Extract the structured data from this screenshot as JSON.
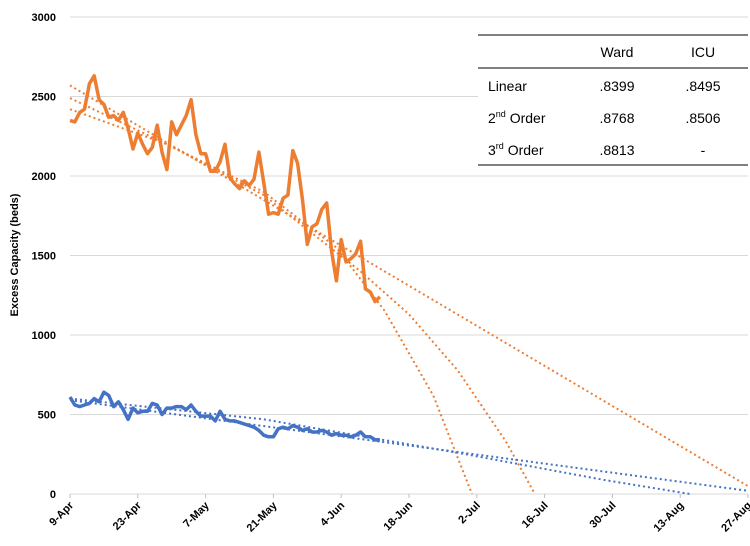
{
  "chart_data": {
    "type": "line",
    "ylabel": "Excess Capacity (beds)",
    "x": [
      0,
      1,
      2,
      3,
      4,
      5,
      6,
      7,
      8,
      9,
      10,
      11,
      12,
      13,
      14,
      15,
      16,
      17,
      18,
      19,
      20,
      21,
      22,
      23,
      24,
      25,
      26,
      27,
      28,
      29,
      30,
      31,
      32,
      33,
      34,
      35,
      36,
      37,
      38,
      39,
      40,
      41,
      42,
      43,
      44,
      45,
      46,
      47,
      48,
      49,
      50,
      51,
      52,
      53,
      54,
      55,
      56,
      57,
      58,
      59,
      60,
      61,
      62,
      63,
      64
    ],
    "series": [
      {
        "name": "Ward",
        "color": "#ed7d31",
        "values": [
          2350,
          2340,
          2400,
          2420,
          2580,
          2630,
          2480,
          2450,
          2370,
          2380,
          2350,
          2400,
          2300,
          2170,
          2270,
          2200,
          2140,
          2180,
          2320,
          2150,
          2040,
          2340,
          2260,
          2320,
          2380,
          2480,
          2260,
          2140,
          2140,
          2030,
          2030,
          2090,
          2200,
          1990,
          1950,
          1920,
          1970,
          1940,
          1980,
          2150,
          1960,
          1760,
          1770,
          1760,
          1860,
          1880,
          2160,
          2080,
          1850,
          1570,
          1680,
          1700,
          1790,
          1830,
          1530,
          1340,
          1600,
          1460,
          1480,
          1510,
          1590,
          1290,
          1270,
          1210,
          1240
        ]
      },
      {
        "name": "ICU",
        "color": "#4472c4",
        "values": [
          610,
          560,
          550,
          560,
          570,
          600,
          580,
          640,
          620,
          550,
          580,
          530,
          470,
          540,
          510,
          520,
          520,
          570,
          560,
          500,
          540,
          540,
          550,
          550,
          530,
          560,
          520,
          490,
          490,
          490,
          460,
          520,
          470,
          460,
          460,
          450,
          440,
          430,
          420,
          400,
          370,
          360,
          360,
          410,
          420,
          410,
          430,
          420,
          400,
          410,
          390,
          390,
          400,
          390,
          370,
          380,
          370,
          370,
          360,
          370,
          390,
          360,
          360,
          340,
          340
        ]
      }
    ],
    "trendlines": [
      {
        "color": "#ed7d31",
        "x": [
          0,
          140
        ],
        "values": [
          2570,
          50
        ]
      },
      {
        "color": "#ed7d31",
        "x": [
          0,
          20,
          40,
          60,
          70,
          80,
          90,
          96
        ],
        "values": [
          2490,
          2200,
          1880,
          1400,
          1130,
          780,
          330,
          0
        ]
      },
      {
        "color": "#ed7d31",
        "x": [
          0,
          20,
          40,
          55,
          65,
          75,
          83
        ],
        "values": [
          2420,
          2200,
          1900,
          1550,
          1150,
          620,
          0
        ]
      },
      {
        "color": "#4472c4",
        "x": [
          0,
          140
        ],
        "values": [
          590,
          20
        ]
      },
      {
        "color": "#4472c4",
        "x": [
          0,
          40,
          80,
          110,
          128
        ],
        "values": [
          600,
          470,
          260,
          90,
          0
        ]
      }
    ],
    "xlim": [
      0,
      140
    ],
    "xticks": [
      {
        "value": 0,
        "label": "9-Apr"
      },
      {
        "value": 14,
        "label": "23-Apr"
      },
      {
        "value": 28,
        "label": "7-May"
      },
      {
        "value": 42,
        "label": "21-May"
      },
      {
        "value": 56,
        "label": "4-Jun"
      },
      {
        "value": 70,
        "label": "18-Jun"
      },
      {
        "value": 84,
        "label": "2-Jul"
      },
      {
        "value": 98,
        "label": "16-Jul"
      },
      {
        "value": 112,
        "label": "30-Jul"
      },
      {
        "value": 126,
        "label": "13-Aug"
      },
      {
        "value": 140,
        "label": "27-Aug"
      }
    ],
    "ylim": [
      0,
      3000
    ],
    "yticks": [
      0,
      500,
      1000,
      1500,
      2000,
      2500,
      3000
    ],
    "grid": true
  },
  "table": {
    "header": [
      "Ward",
      "ICU"
    ],
    "rows": [
      {
        "label": [
          "Linear"
        ],
        "cells": [
          ".8399",
          ".8495"
        ]
      },
      {
        "label": [
          "2",
          "nd",
          " Order"
        ],
        "cells": [
          ".8768",
          ".8506"
        ]
      },
      {
        "label": [
          "3",
          "rd",
          " Order"
        ],
        "cells": [
          ".8813",
          "-"
        ]
      }
    ]
  }
}
